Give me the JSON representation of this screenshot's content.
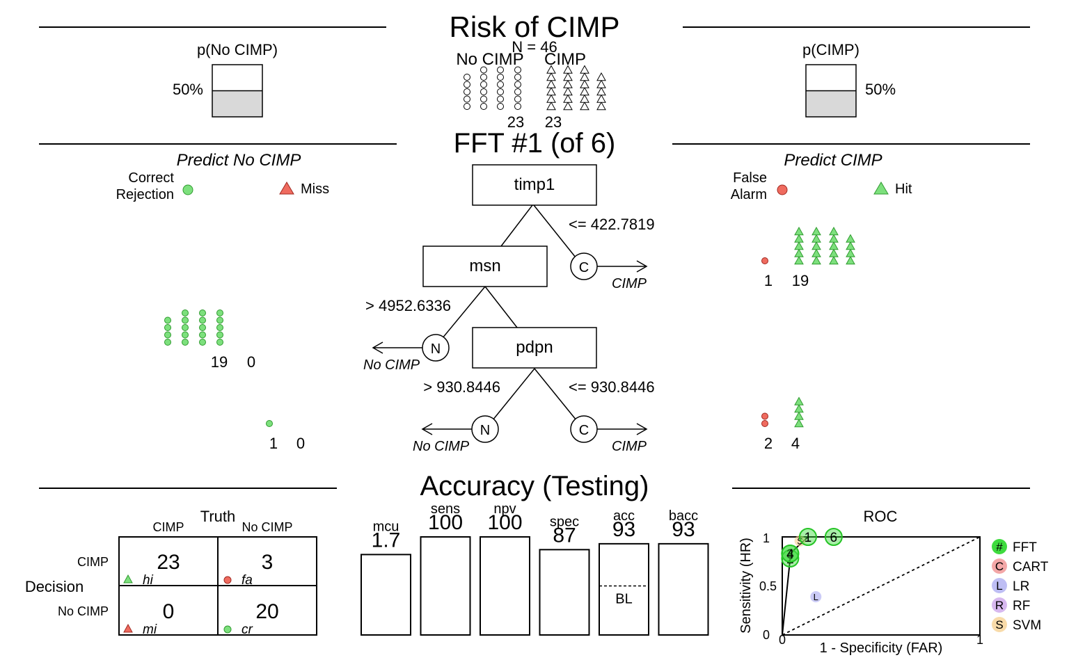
{
  "risk": {
    "title": "Risk of CIMP",
    "n_label": "N = 46",
    "class_no": "No CIMP",
    "class_yes": "CIMP",
    "count_no": "23",
    "count_yes": "23",
    "p_no_label": "p(No CIMP)",
    "p_yes_label": "p(CIMP)",
    "p_no_value": "50%",
    "p_yes_value": "50%",
    "p_no_fraction": 0.5,
    "p_yes_fraction": 0.5
  },
  "tree": {
    "title": "FFT #1 (of 6)",
    "left_heading": "Predict No CIMP",
    "right_heading": "Predict CIMP",
    "legend_cr_line1": "Correct",
    "legend_cr_line2": "Rejection",
    "legend_miss": "Miss",
    "legend_fa_line1": "False",
    "legend_fa_line2": "Alarm",
    "legend_hit": "Hit",
    "node1_label": "timp1",
    "node1_threshold": "<= 422.7819",
    "node1_exit_letter": "C",
    "node1_exit_label": "CIMP",
    "node2_label": "msn",
    "node2_threshold": "> 4952.6336",
    "node2_exit_letter": "N",
    "node2_exit_label": "No CIMP",
    "node3_label": "pdpn",
    "node3_left_threshold": "> 930.8446",
    "node3_right_threshold": "<= 930.8446",
    "node3_left_letter": "N",
    "node3_left_label": "No CIMP",
    "node3_right_letter": "C",
    "node3_right_label": "CIMP",
    "level1_fa": "1",
    "level1_hit": "19",
    "level2_cr": "19",
    "level2_miss": "0",
    "level3_cr": "1",
    "level3_miss": "0",
    "level3_fa": "2",
    "level3_hit": "4"
  },
  "accuracy": {
    "title": "Accuracy (Testing)",
    "truth_label": "Truth",
    "decision_label": "Decision",
    "col_cimp": "CIMP",
    "col_nocimp": "No CIMP",
    "row_cimp": "CIMP",
    "row_nocimp": "No CIMP",
    "hi": "23",
    "fa": "3",
    "mi": "0",
    "cr": "20",
    "hi_label": "hi",
    "fa_label": "fa",
    "mi_label": "mi",
    "cr_label": "cr",
    "bl_label": "BL",
    "roc_title": "ROC",
    "roc_xlabel": "1 - Specificity (FAR)",
    "roc_ylabel": "Sensitivity (HR)",
    "roc_x_ticks": [
      "0",
      "1"
    ],
    "roc_y_ticks": [
      "0",
      "0.5",
      "1"
    ],
    "legend": [
      "FFT",
      "CART",
      "LR",
      "RF",
      "SVM"
    ],
    "legend_letters": [
      "#",
      "C",
      "L",
      "R",
      "S"
    ]
  },
  "chart_data": [
    {
      "type": "bar",
      "title": "Accuracy (Testing)",
      "categories": [
        "mcu",
        "sens",
        "npv",
        "spec",
        "acc",
        "bacc"
      ],
      "value_labels": [
        "1.7",
        "100",
        "100",
        "87",
        "93",
        "93"
      ],
      "values": [
        1.7,
        100,
        100,
        87,
        93,
        93
      ],
      "ylim": [
        0,
        100
      ],
      "baseline_category": "acc",
      "baseline_value": 50
    },
    {
      "type": "scatter",
      "title": "ROC",
      "xlabel": "1 - Specificity (FAR)",
      "ylabel": "Sensitivity (HR)",
      "xlim": [
        0,
        1
      ],
      "ylim": [
        0,
        1
      ],
      "series": [
        {
          "name": "FFT",
          "color": "#3edb3e",
          "points": [
            {
              "label": "1",
              "x": 0.13,
              "y": 1.0
            },
            {
              "label": "6",
              "x": 0.26,
              "y": 1.0
            },
            {
              "label": "2",
              "x": 0.04,
              "y": 0.78
            },
            {
              "label": "3",
              "x": 0.04,
              "y": 0.83
            },
            {
              "label": "4",
              "x": 0.04,
              "y": 0.83
            }
          ]
        },
        {
          "name": "CART",
          "color": "#ef8a8a",
          "points": []
        },
        {
          "name": "LR",
          "color": "#a8a8f0",
          "points": [
            {
              "label": "L",
              "x": 0.17,
              "y": 0.39
            }
          ]
        },
        {
          "name": "RF",
          "color": "#c9a0ea",
          "points": []
        },
        {
          "name": "SVM",
          "color": "#f5cf8e",
          "points": [
            {
              "label": "S",
              "x": 0.09,
              "y": 0.96
            }
          ]
        }
      ],
      "fft_curve": [
        [
          0,
          0
        ],
        [
          0.04,
          0.78
        ],
        [
          0.04,
          0.83
        ],
        [
          0.13,
          1.0
        ],
        [
          0.26,
          1.0
        ],
        [
          1,
          1
        ]
      ],
      "chance_line": [
        [
          0,
          0
        ],
        [
          1,
          1
        ]
      ]
    }
  ],
  "colors": {
    "hit": "#7de07d",
    "cr": "#7de07d",
    "miss": "#ef6b5f",
    "fa": "#ef6b5f",
    "prob_fill": "#d9d9d9"
  }
}
